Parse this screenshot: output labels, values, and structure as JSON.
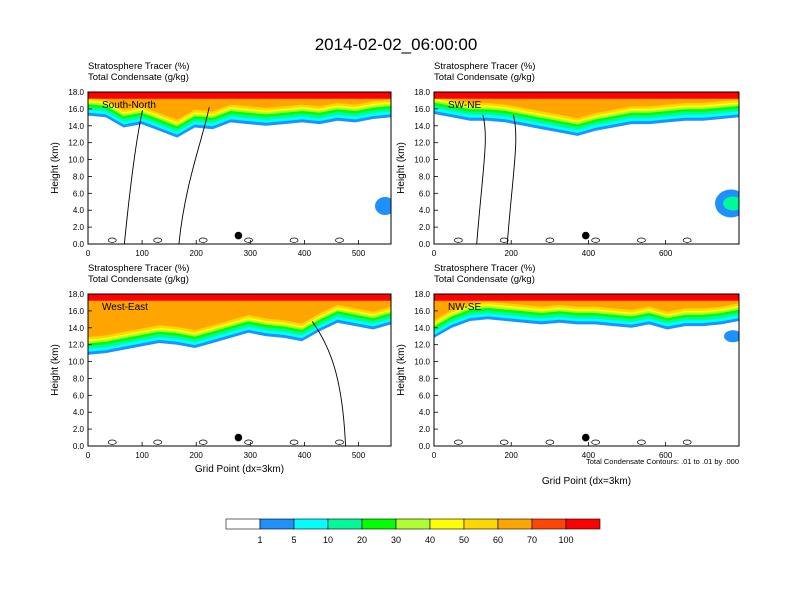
{
  "title": "2014-02-02_06:00:00",
  "panel_header": {
    "line1_name": "Stratosphere Tracer",
    "line1_unit": "(%)",
    "line2_name": "Total Condensate",
    "line2_unit": "(g/kg)"
  },
  "ylabel": "Height (km)",
  "xlabel": "Grid Point (dx=3km)",
  "contour_note": "Total Condensate Contours: .01 to .01 by .000",
  "contour_label": ".01",
  "colors": {
    "levels": [
      "#ffffff",
      "#1e90ff",
      "#00ffff",
      "#00fa9a",
      "#00ff00",
      "#adff2f",
      "#ffff00",
      "#ffd700",
      "#ffa500",
      "#ff4500",
      "#ff0000"
    ],
    "background": "#ffffff"
  },
  "chart_data": [
    {
      "type": "heatmap",
      "panel_label": "South-North",
      "xlim": [
        0,
        560
      ],
      "ylim": [
        0,
        18
      ],
      "xticks": [
        0,
        100,
        200,
        300,
        400,
        500
      ],
      "yticks": [
        "0.0",
        "2.0",
        "4.0",
        "6.0",
        "8.0",
        "10.0",
        "12.0",
        "14.0",
        "16.0",
        "18.0"
      ],
      "tracer_bottom_km": [
        15.2,
        15.0,
        13.8,
        14.2,
        13.4,
        12.6,
        13.8,
        13.6,
        14.4,
        14.2,
        14.0,
        14.2,
        14.4,
        14.2,
        14.6,
        14.4,
        14.8,
        15.0
      ],
      "marker": {
        "x": 278,
        "y": 1.0
      }
    },
    {
      "type": "heatmap",
      "panel_label": "SW-NE",
      "xlim": [
        0,
        790
      ],
      "ylim": [
        0,
        18
      ],
      "xticks": [
        0,
        200,
        400,
        600
      ],
      "yticks": [
        "0.0",
        "2.0",
        "4.0",
        "6.0",
        "8.0",
        "10.0",
        "12.0",
        "14.0",
        "16.0",
        "18.0"
      ],
      "tracer_bottom_km": [
        15.4,
        15.0,
        14.6,
        14.6,
        14.4,
        14.0,
        13.6,
        13.2,
        12.8,
        13.4,
        13.8,
        14.2,
        14.2,
        14.4,
        14.6,
        14.6,
        14.8,
        15.0
      ],
      "marker": {
        "x": 393,
        "y": 1.0
      }
    },
    {
      "type": "heatmap",
      "panel_label": "West-East",
      "xlim": [
        0,
        560
      ],
      "ylim": [
        0,
        18
      ],
      "xticks": [
        0,
        100,
        200,
        300,
        400,
        500
      ],
      "yticks": [
        "0.0",
        "2.0",
        "4.0",
        "6.0",
        "8.0",
        "10.0",
        "12.0",
        "14.0",
        "16.0",
        "18.0"
      ],
      "tracer_bottom_km": [
        10.8,
        11.0,
        11.4,
        11.8,
        12.2,
        12.0,
        11.6,
        12.2,
        12.8,
        13.4,
        13.0,
        12.8,
        12.4,
        13.6,
        14.6,
        14.2,
        13.8,
        14.4
      ],
      "marker": {
        "x": 278,
        "y": 1.0
      }
    },
    {
      "type": "heatmap",
      "panel_label": "NW-SE",
      "xlim": [
        0,
        790
      ],
      "ylim": [
        0,
        18
      ],
      "xticks": [
        0,
        200,
        400,
        600
      ],
      "yticks": [
        "0.0",
        "2.0",
        "4.0",
        "6.0",
        "8.0",
        "10.0",
        "12.0",
        "14.0",
        "16.0",
        "18.0"
      ],
      "tracer_bottom_km": [
        12.8,
        14.0,
        14.8,
        15.0,
        14.8,
        14.6,
        14.4,
        14.6,
        14.4,
        14.4,
        14.2,
        14.0,
        14.4,
        13.8,
        14.2,
        14.2,
        14.4,
        14.8
      ],
      "marker": {
        "x": 393,
        "y": 1.0
      }
    }
  ],
  "colorbar": {
    "labels": [
      "1",
      "5",
      "10",
      "20",
      "30",
      "40",
      "50",
      "60",
      "70",
      "100"
    ]
  }
}
